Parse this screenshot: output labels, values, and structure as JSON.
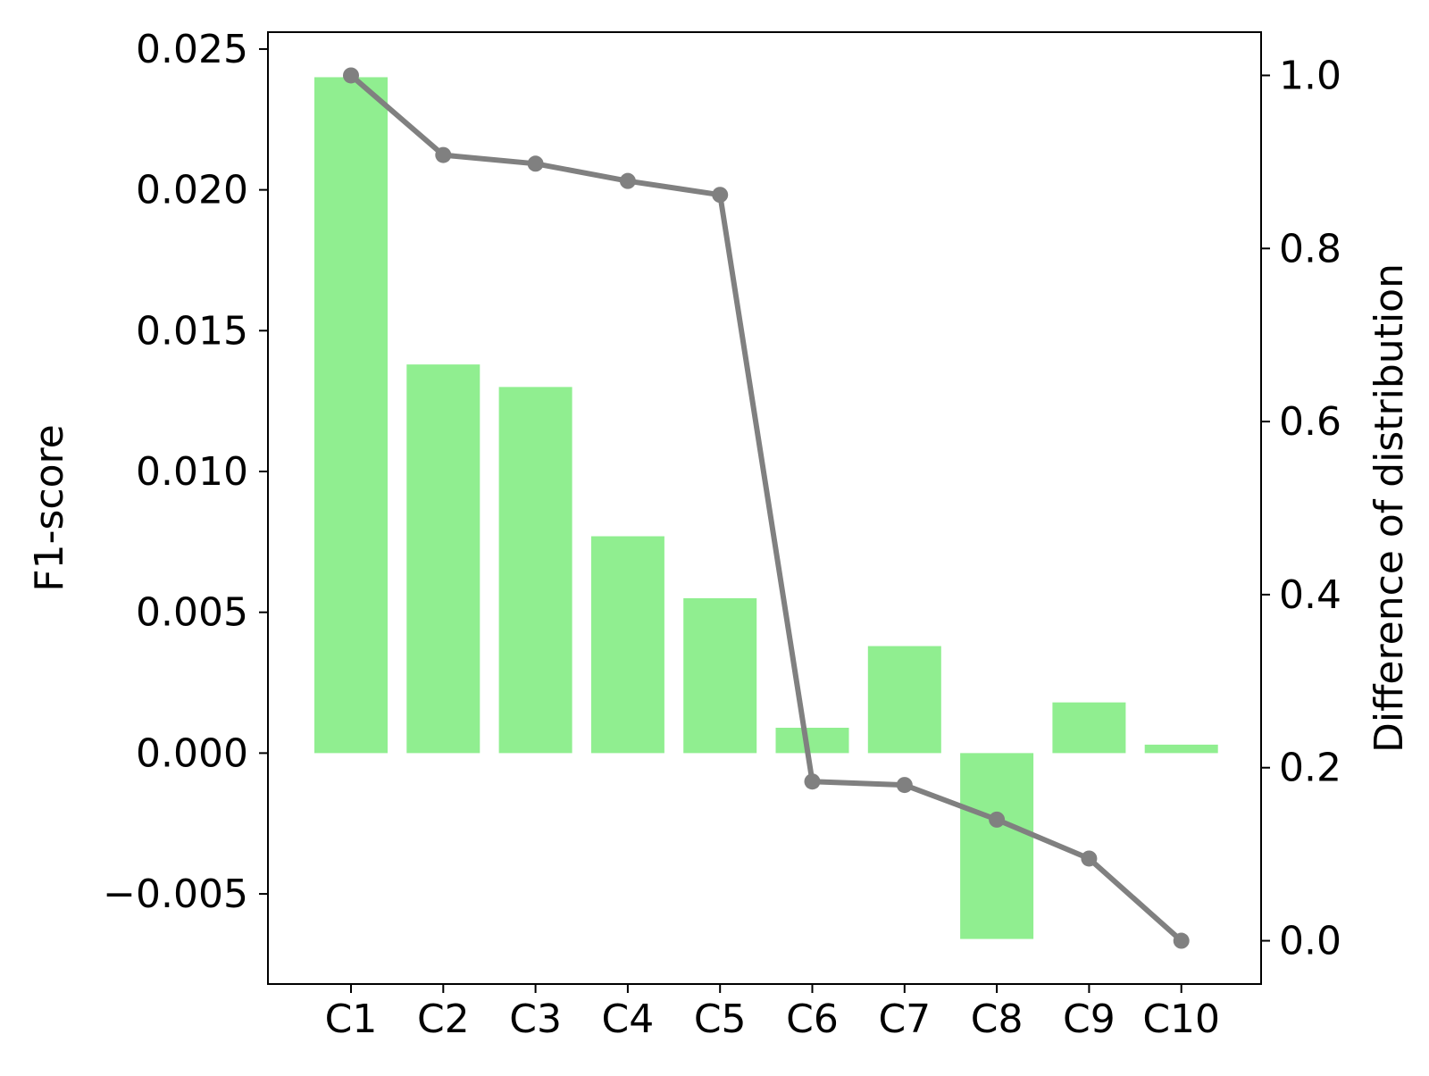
{
  "chart_data": {
    "type": "bar",
    "categories": [
      "C1",
      "C2",
      "C3",
      "C4",
      "C5",
      "C6",
      "C7",
      "C8",
      "C9",
      "C10"
    ],
    "values": [
      0.024,
      0.0138,
      0.013,
      0.0077,
      0.0055,
      0.0009,
      0.0038,
      -0.0066,
      0.0018,
      0.0003
    ],
    "ylabel": "F1-score",
    "ylim": [
      -0.0082,
      0.0256
    ],
    "yticks": [
      -0.005,
      0.0,
      0.005,
      0.01,
      0.015,
      0.02,
      0.025
    ],
    "ytick_labels": [
      "−0.005",
      "0.000",
      "0.005",
      "0.010",
      "0.015",
      "0.020",
      "0.025"
    ],
    "bar_color": "#90ee90",
    "line_series": {
      "values": [
        1.0,
        0.908,
        0.898,
        0.878,
        0.862,
        0.184,
        0.18,
        0.14,
        0.095,
        0.0
      ],
      "axis": "right",
      "color": "#808080"
    },
    "ylabel_right": "Difference of distribution",
    "ylim_right": [
      -0.05,
      1.05
    ],
    "yticks_right": [
      0.0,
      0.2,
      0.4,
      0.6,
      0.8,
      1.0
    ],
    "ytick_labels_right": [
      "0.0",
      "0.2",
      "0.4",
      "0.6",
      "0.8",
      "1.0"
    ],
    "grid": false,
    "legend": "none"
  }
}
